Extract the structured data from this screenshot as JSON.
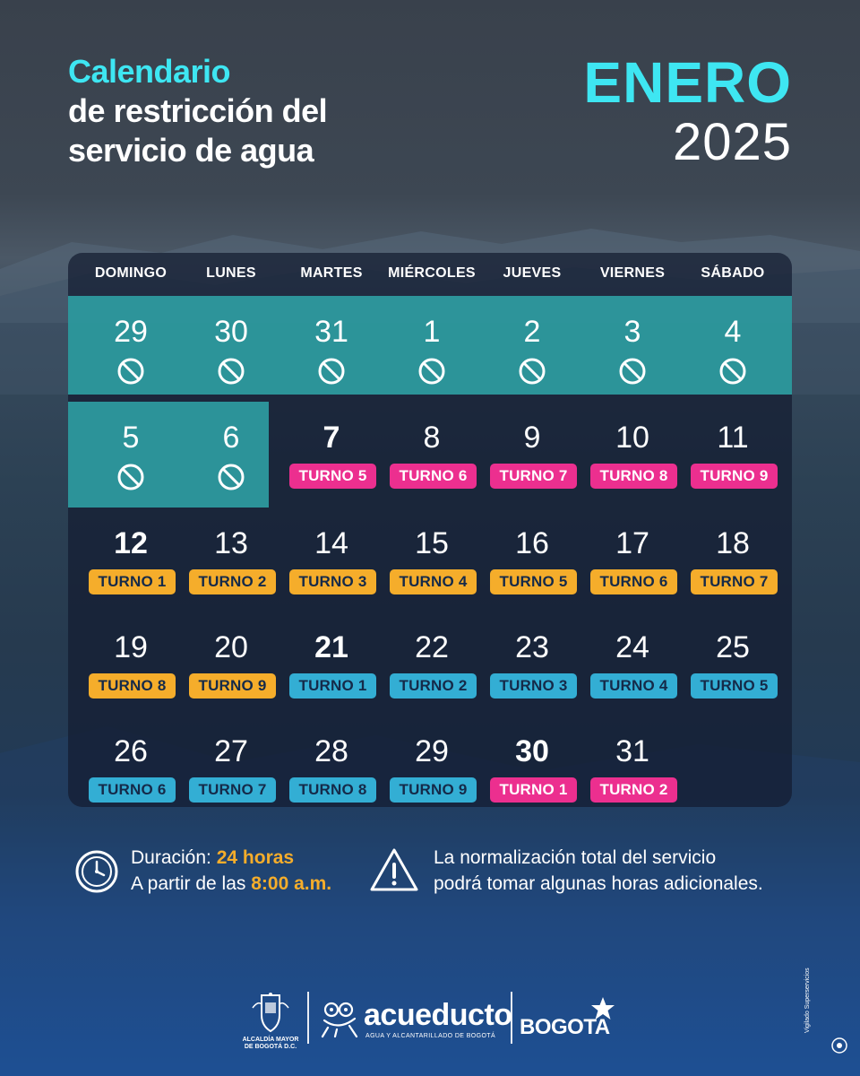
{
  "title": {
    "line1": "Calendario",
    "line2": "de restricción del",
    "line3": "servicio de agua"
  },
  "month": "ENERO",
  "year": "2025",
  "weekdays": [
    "DOMINGO",
    "LUNES",
    "MARTES",
    "MIÉRCOLES",
    "JUEVES",
    "VIERNES",
    "SÁBADO"
  ],
  "colors": {
    "cyan": "#3ee6f2",
    "teal_highlight": "#2fa3a6",
    "pink": "#ec2f8f",
    "yellow": "#f5ad2b",
    "blue": "#33aed4"
  },
  "weeks": [
    [
      {
        "day": "29",
        "no_service": true
      },
      {
        "day": "30",
        "no_service": true
      },
      {
        "day": "31",
        "no_service": true
      },
      {
        "day": "1",
        "no_service": true
      },
      {
        "day": "2",
        "no_service": true
      },
      {
        "day": "3",
        "no_service": true
      },
      {
        "day": "4",
        "no_service": true
      }
    ],
    [
      {
        "day": "5",
        "no_service": true
      },
      {
        "day": "6",
        "no_service": true
      },
      {
        "day": "7",
        "bold": true,
        "turno": "TURNO 5",
        "color": "pink"
      },
      {
        "day": "8",
        "turno": "TURNO 6",
        "color": "pink"
      },
      {
        "day": "9",
        "turno": "TURNO 7",
        "color": "pink"
      },
      {
        "day": "10",
        "turno": "TURNO 8",
        "color": "pink"
      },
      {
        "day": "11",
        "turno": "TURNO 9",
        "color": "pink"
      }
    ],
    [
      {
        "day": "12",
        "bold": true,
        "turno": "TURNO 1",
        "color": "yellow"
      },
      {
        "day": "13",
        "turno": "TURNO 2",
        "color": "yellow"
      },
      {
        "day": "14",
        "turno": "TURNO 3",
        "color": "yellow"
      },
      {
        "day": "15",
        "turno": "TURNO 4",
        "color": "yellow"
      },
      {
        "day": "16",
        "turno": "TURNO 5",
        "color": "yellow"
      },
      {
        "day": "17",
        "turno": "TURNO 6",
        "color": "yellow"
      },
      {
        "day": "18",
        "turno": "TURNO 7",
        "color": "yellow"
      }
    ],
    [
      {
        "day": "19",
        "turno": "TURNO 8",
        "color": "yellow"
      },
      {
        "day": "20",
        "turno": "TURNO 9",
        "color": "yellow"
      },
      {
        "day": "21",
        "bold": true,
        "turno": "TURNO 1",
        "color": "blue"
      },
      {
        "day": "22",
        "turno": "TURNO 2",
        "color": "blue"
      },
      {
        "day": "23",
        "turno": "TURNO 3",
        "color": "blue"
      },
      {
        "day": "24",
        "turno": "TURNO 4",
        "color": "blue"
      },
      {
        "day": "25",
        "turno": "TURNO 5",
        "color": "blue"
      }
    ],
    [
      {
        "day": "26",
        "turno": "TURNO 6",
        "color": "blue"
      },
      {
        "day": "27",
        "turno": "TURNO 7",
        "color": "blue"
      },
      {
        "day": "28",
        "turno": "TURNO 8",
        "color": "blue"
      },
      {
        "day": "29",
        "turno": "TURNO 9",
        "color": "blue"
      },
      {
        "day": "30",
        "bold": true,
        "turno": "TURNO 1",
        "color": "pink"
      },
      {
        "day": "31",
        "turno": "TURNO 2",
        "color": "pink"
      }
    ]
  ],
  "duration": {
    "label": "Duración:",
    "value": "24 horas",
    "start_label": "A partir de las",
    "start_value": "8:00 a.m."
  },
  "warning": {
    "line1": "La normalización total del servicio",
    "line2": "podrá tomar algunas horas adicionales."
  },
  "footer": {
    "crest_line1": "ALCALDÍA MAYOR",
    "crest_line2": "DE BOGOTÁ D.C.",
    "acueducto": "acueducto",
    "acueducto_sub": "AGUA Y ALCANTARILLADO DE BOGOTÁ",
    "bogota": "BOGOTA",
    "supervision": "Vigilado Superservicios"
  }
}
